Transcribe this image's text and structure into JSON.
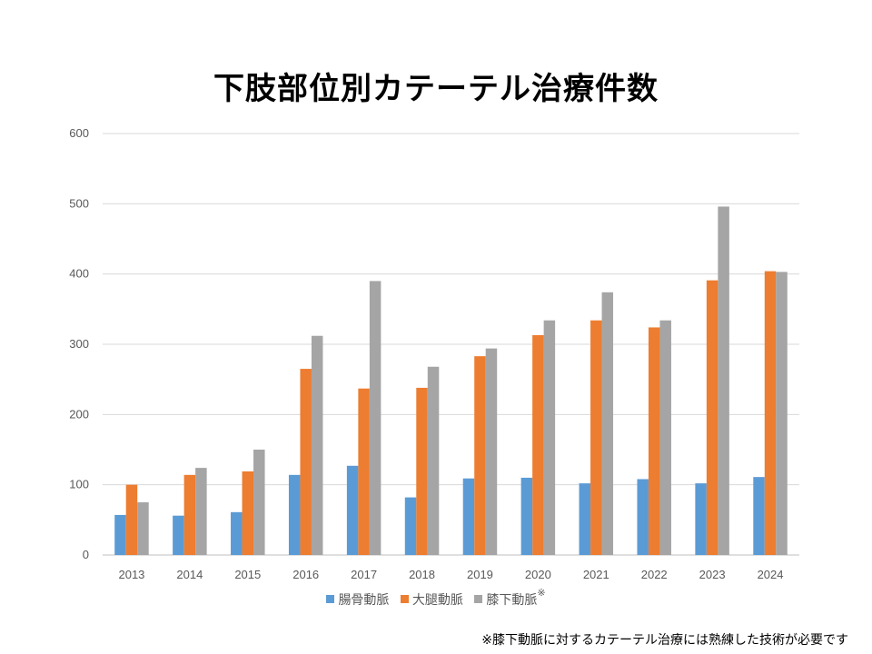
{
  "chart_data": {
    "type": "bar",
    "title": "下肢部位別カテーテル治療件数",
    "categories": [
      "2013",
      "2014",
      "2015",
      "2016",
      "2017",
      "2018",
      "2019",
      "2020",
      "2021",
      "2022",
      "2023",
      "2024"
    ],
    "series": [
      {
        "name": "腸骨動脈",
        "color": "#5B9BD5",
        "values": [
          57,
          56,
          61,
          114,
          127,
          82,
          109,
          110,
          102,
          108,
          102,
          111
        ]
      },
      {
        "name": "大腿動脈",
        "color": "#ED7D31",
        "values": [
          100,
          114,
          119,
          265,
          237,
          238,
          283,
          313,
          334,
          324,
          391,
          404
        ]
      },
      {
        "name": "膝下動脈",
        "name_suffix": "※",
        "color": "#A5A5A5",
        "values": [
          75,
          124,
          150,
          312,
          390,
          268,
          294,
          334,
          374,
          334,
          496,
          403
        ]
      }
    ],
    "ylim": [
      0,
      600
    ],
    "yticks": [
      0,
      100,
      200,
      300,
      400,
      500,
      600
    ],
    "grid": true,
    "legend": "bottom",
    "footnote": "※膝下動脈に対するカテーテル治療には熟練した技術が必要です"
  }
}
